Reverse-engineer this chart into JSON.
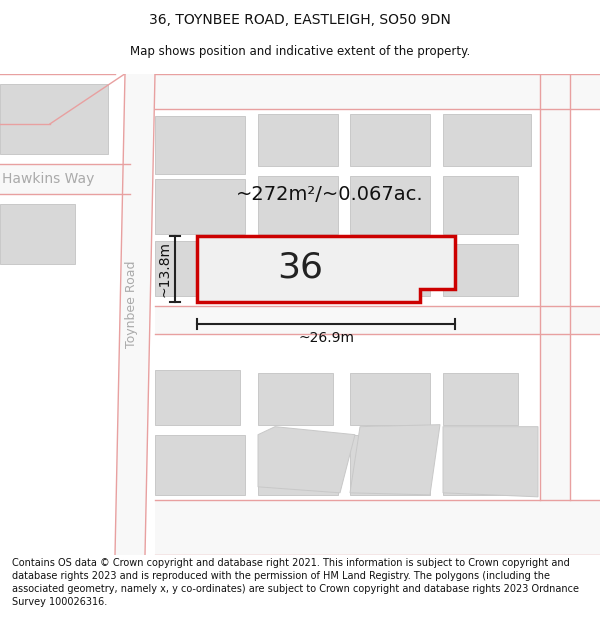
{
  "title": "36, TOYNBEE ROAD, EASTLEIGH, SO50 9DN",
  "subtitle": "Map shows position and indicative extent of the property.",
  "footer": "Contains OS data © Crown copyright and database right 2021. This information is subject to Crown copyright and database rights 2023 and is reproduced with the permission of HM Land Registry. The polygons (including the associated geometry, namely x, y co-ordinates) are subject to Crown copyright and database rights 2023 Ordnance Survey 100026316.",
  "area_label": "~272m²/~0.067ac.",
  "width_label": "~26.9m",
  "height_label": "~13.8m",
  "number_label": "36",
  "bg_color": "#ffffff",
  "map_bg": "#f0f0f0",
  "road_fill": "#f5f5f5",
  "block_color": "#d8d8d8",
  "block_edge": "#c8c8c8",
  "highlight_color": "#cc0000",
  "road_line_color": "#e8a0a0",
  "street_label_color": "#aaaaaa",
  "dim_line_color": "#222222",
  "title_fontsize": 10,
  "subtitle_fontsize": 8.5,
  "footer_fontsize": 7.0,
  "area_fontsize": 14,
  "number_fontsize": 26,
  "dim_fontsize": 10,
  "street_fontsize": 9
}
